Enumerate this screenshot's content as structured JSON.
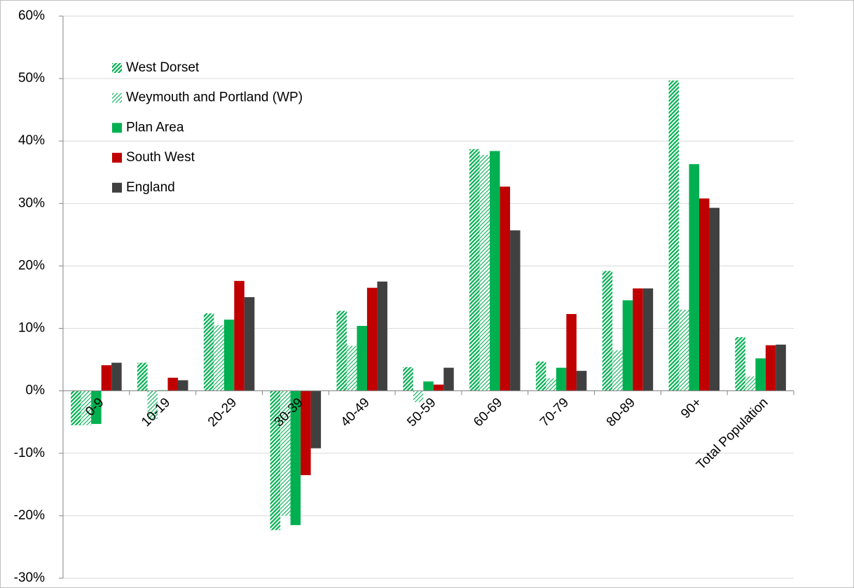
{
  "chart_data": {
    "type": "bar",
    "categories": [
      "0-9",
      "10-19",
      "20-29",
      "30-39",
      "40-49",
      "50-59",
      "60-69",
      "70-79",
      "80-89",
      "90+",
      "Total Population"
    ],
    "series": [
      {
        "name": "West Dorset",
        "color": "#00b050",
        "pattern": "dense",
        "values": [
          -5.5,
          4.5,
          12.4,
          -22.3,
          12.8,
          3.8,
          38.7,
          4.7,
          19.2,
          49.7,
          8.6
        ]
      },
      {
        "name": "Weymouth and Portland (WP)",
        "color": "#00b050",
        "pattern": "light",
        "values": [
          -5.5,
          -4.5,
          10.5,
          -20.0,
          7.2,
          -1.8,
          37.8,
          2.0,
          6.5,
          13.0,
          2.3
        ]
      },
      {
        "name": "Plan Area",
        "color": "#00b050",
        "values": [
          -5.3,
          0.1,
          11.4,
          -21.5,
          10.4,
          1.5,
          38.4,
          3.7,
          14.5,
          36.3,
          5.2
        ]
      },
      {
        "name": "South West",
        "color": "#c00000",
        "values": [
          4.1,
          2.1,
          17.6,
          -13.5,
          16.5,
          1.0,
          32.7,
          12.3,
          16.4,
          30.8,
          7.3
        ]
      },
      {
        "name": "England",
        "color": "#404040",
        "values": [
          4.5,
          1.7,
          15.0,
          -9.2,
          17.5,
          3.7,
          25.7,
          3.2,
          16.4,
          29.3,
          7.4
        ]
      }
    ],
    "ylim": [
      -30,
      60
    ],
    "yticks": [
      {
        "value": -30,
        "label": "-30%"
      },
      {
        "value": -20,
        "label": "-20%"
      },
      {
        "value": -10,
        "label": "-10%"
      },
      {
        "value": 0,
        "label": "0%"
      },
      {
        "value": 10,
        "label": "10%"
      },
      {
        "value": 20,
        "label": "20%"
      },
      {
        "value": 30,
        "label": "30%"
      },
      {
        "value": 40,
        "label": "40%"
      },
      {
        "value": 50,
        "label": "50%"
      },
      {
        "value": 60,
        "label": "60%"
      }
    ],
    "grid": true,
    "legend": "upper-left"
  }
}
